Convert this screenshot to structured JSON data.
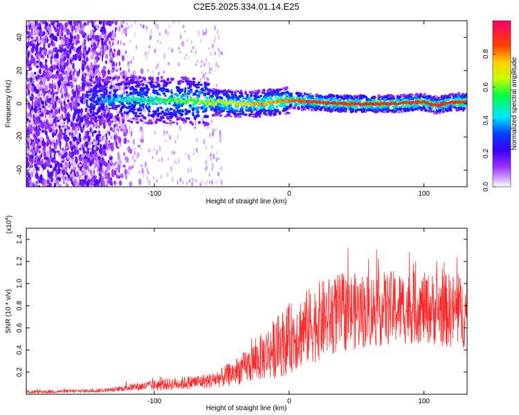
{
  "title": "C2E5.2025.334.01.14.E25",
  "chart_data": [
    {
      "type": "heatmap",
      "xlabel": "Height of straight line (km)",
      "ylabel": "Frequency (Hz)",
      "xlim": [
        -195,
        132
      ],
      "ylim": [
        -50,
        50
      ],
      "xticks": [
        -100,
        0,
        100
      ],
      "yticks": [
        -40,
        -20,
        0,
        20,
        40
      ],
      "colorbar": {
        "label": "Normalized spectral amplitude",
        "range": [
          0,
          1
        ],
        "ticks": [
          "0.0",
          "0.2",
          "0.4",
          "0.6",
          "0.8"
        ],
        "tick_values": [
          0,
          0.2,
          0.4,
          0.6,
          0.8
        ]
      },
      "ridge": {
        "description_points_x": [
          -140,
          -120,
          -100,
          -80,
          -60,
          -40,
          -20,
          0,
          20,
          40,
          60,
          80,
          100,
          110,
          120,
          130
        ],
        "description_points_y": [
          2,
          3,
          2,
          2,
          1,
          0,
          0,
          2,
          1,
          0,
          0,
          0,
          1,
          -1,
          1,
          1
        ]
      }
    },
    {
      "type": "line",
      "xlabel": "Height of straight line (km)",
      "ylabel": "SNR (10 * v/v)",
      "multiplier": "(x10",
      "multiplier_exp": "4",
      "multiplier_close": ")",
      "xlim": [
        -195,
        132
      ],
      "ylim": [
        0,
        1.5
      ],
      "xticks": [
        -100,
        0,
        100
      ],
      "yticks": [
        0.2,
        0.4,
        0.6,
        0.8,
        1.0,
        1.2,
        1.4
      ],
      "ytick_labels": [
        "0.2",
        "0.4",
        "0.6",
        "0.8",
        "1.0",
        "1.2",
        "1.4"
      ],
      "series": [
        {
          "name": "SNR",
          "color": "#ff2a2a",
          "envelope_x": [
            -195,
            -150,
            -130,
            -120,
            -100,
            -80,
            -60,
            -50,
            -40,
            -30,
            -20,
            -10,
            0,
            10,
            20,
            30,
            40,
            60,
            80,
            100,
            115,
            125,
            132
          ],
          "envelope_mean": [
            0.02,
            0.03,
            0.04,
            0.06,
            0.08,
            0.1,
            0.12,
            0.15,
            0.2,
            0.26,
            0.34,
            0.42,
            0.5,
            0.58,
            0.65,
            0.7,
            0.74,
            0.76,
            0.78,
            0.78,
            0.76,
            0.75,
            0.72
          ],
          "envelope_spread": [
            0.015,
            0.015,
            0.02,
            0.03,
            0.05,
            0.06,
            0.07,
            0.09,
            0.12,
            0.16,
            0.22,
            0.28,
            0.32,
            0.34,
            0.36,
            0.36,
            0.36,
            0.34,
            0.34,
            0.32,
            0.34,
            0.34,
            0.3
          ]
        }
      ]
    }
  ]
}
